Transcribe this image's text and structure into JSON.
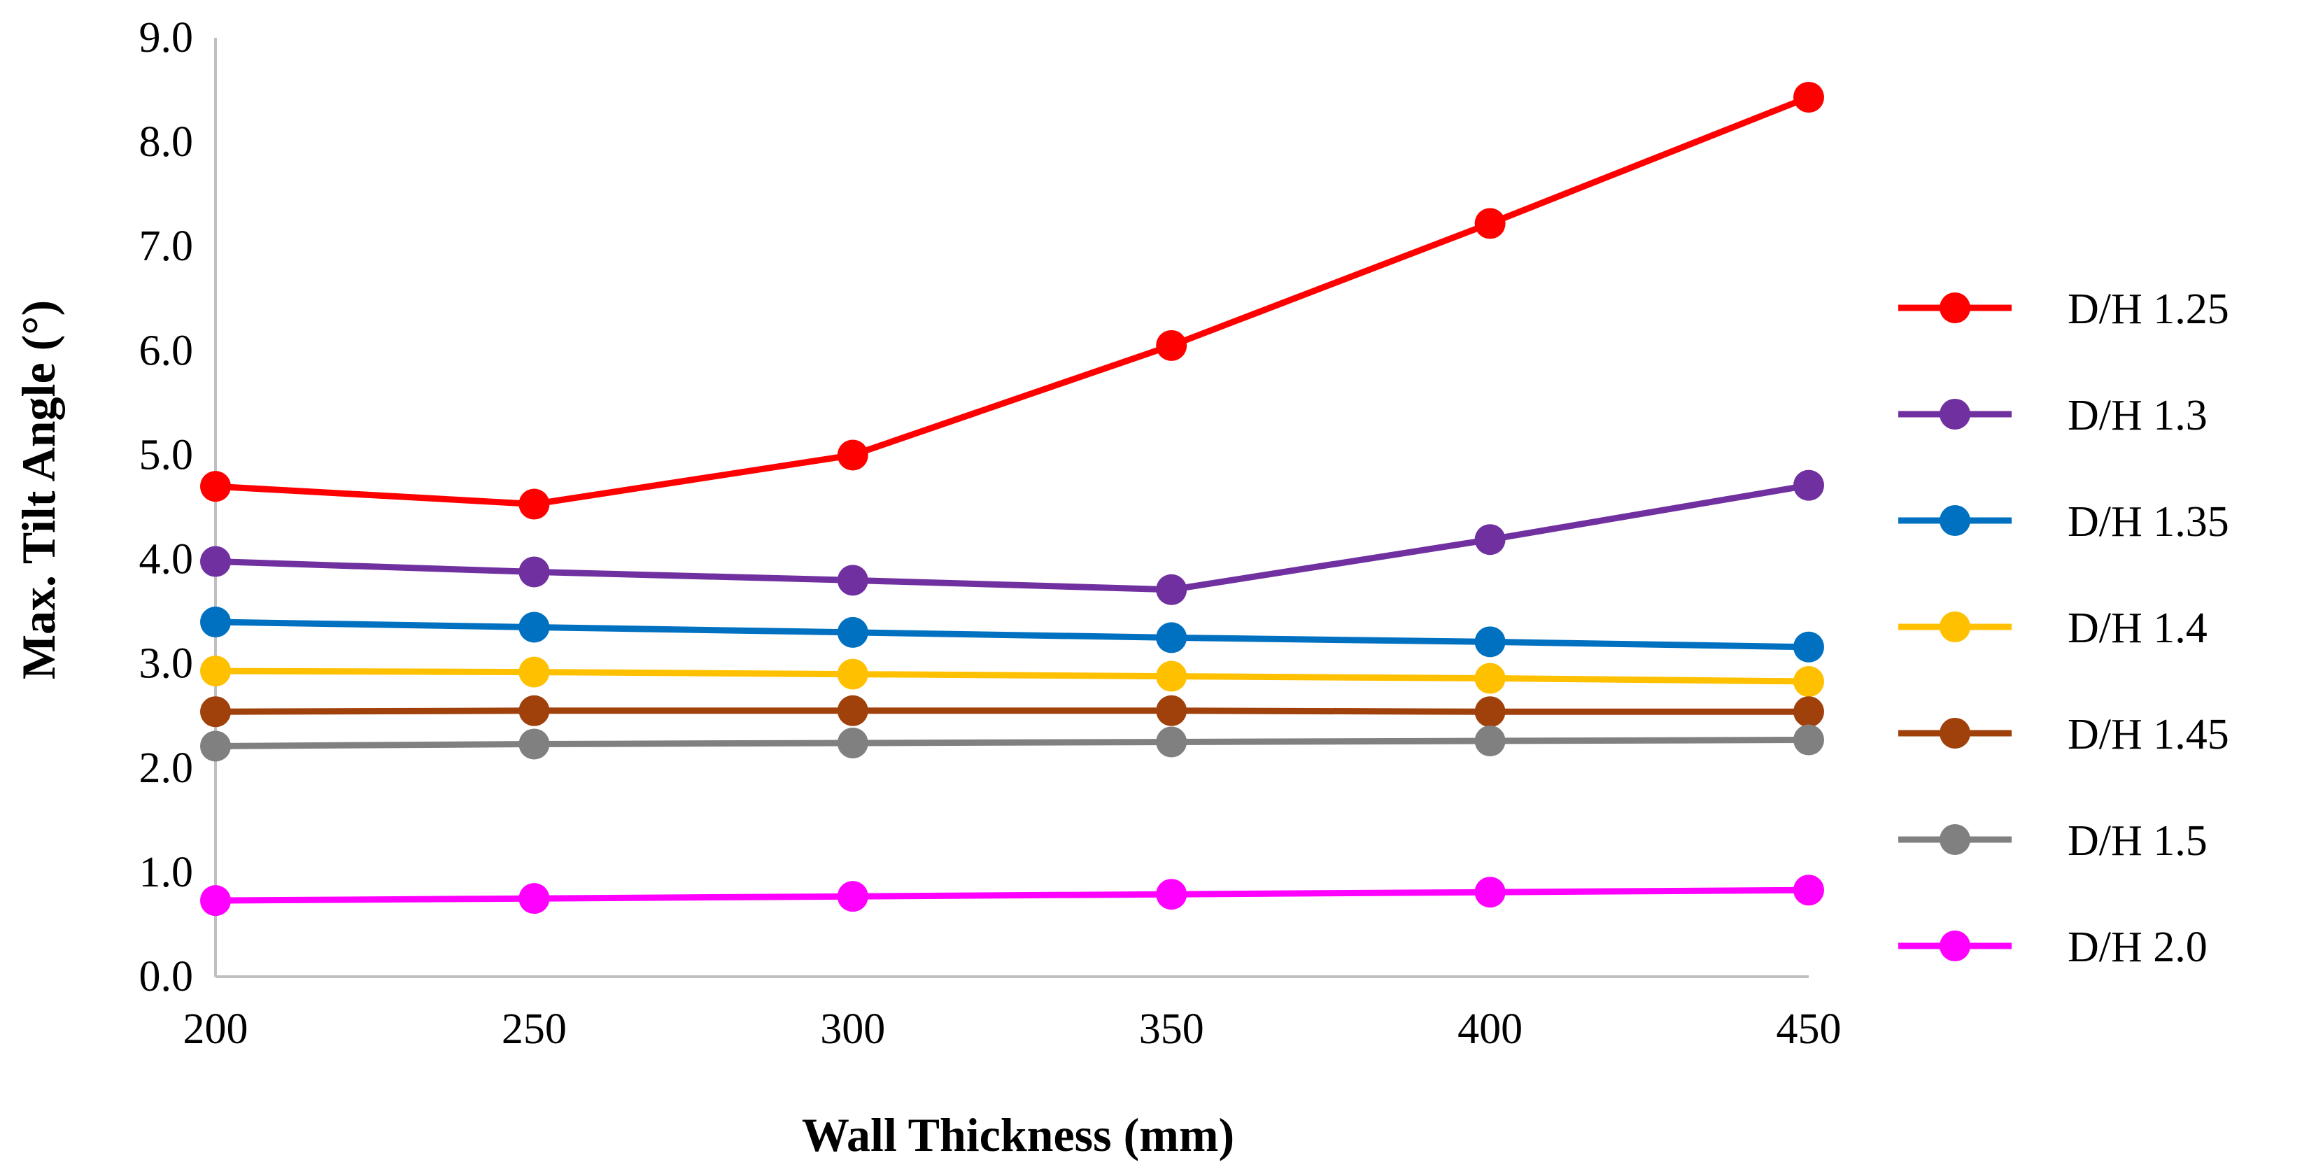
{
  "chart_data": {
    "type": "line",
    "title": "",
    "xlabel": "Wall Thickness (mm)",
    "ylabel": "Max. Tilt Angle (°)",
    "x": [
      200,
      250,
      300,
      350,
      400,
      450
    ],
    "x_tick_labels": [
      "200",
      "250",
      "300",
      "350",
      "400",
      "450"
    ],
    "ylim": [
      0,
      9
    ],
    "y_ticks": [
      0,
      1,
      2,
      3,
      4,
      5,
      6,
      7,
      8,
      9
    ],
    "y_tick_labels": [
      "0.0",
      "1.0",
      "2.0",
      "3.0",
      "4.0",
      "5.0",
      "6.0",
      "7.0",
      "8.0",
      "9.0"
    ],
    "grid": false,
    "legend_position": "right",
    "series": [
      {
        "name": "D/H 1.25",
        "color": "#ff0000",
        "values": [
          4.7,
          4.53,
          5.0,
          6.05,
          7.22,
          8.43
        ]
      },
      {
        "name": "D/H 1.3",
        "color": "#7030a0",
        "values": [
          3.98,
          3.88,
          3.8,
          3.71,
          4.19,
          4.71
        ]
      },
      {
        "name": "D/H 1.35",
        "color": "#0070c0",
        "values": [
          3.4,
          3.35,
          3.3,
          3.25,
          3.21,
          3.16
        ]
      },
      {
        "name": "D/H 1.4",
        "color": "#ffc000",
        "values": [
          2.93,
          2.92,
          2.9,
          2.88,
          2.86,
          2.83
        ]
      },
      {
        "name": "D/H 1.45",
        "color": "#a0400b",
        "values": [
          2.54,
          2.55,
          2.55,
          2.55,
          2.54,
          2.54
        ]
      },
      {
        "name": "D/H 1.5",
        "color": "#808080",
        "values": [
          2.21,
          2.23,
          2.24,
          2.25,
          2.26,
          2.27
        ]
      },
      {
        "name": "D/H 2.0",
        "color": "#ff00ff",
        "values": [
          0.73,
          0.75,
          0.77,
          0.79,
          0.81,
          0.83
        ]
      }
    ]
  }
}
